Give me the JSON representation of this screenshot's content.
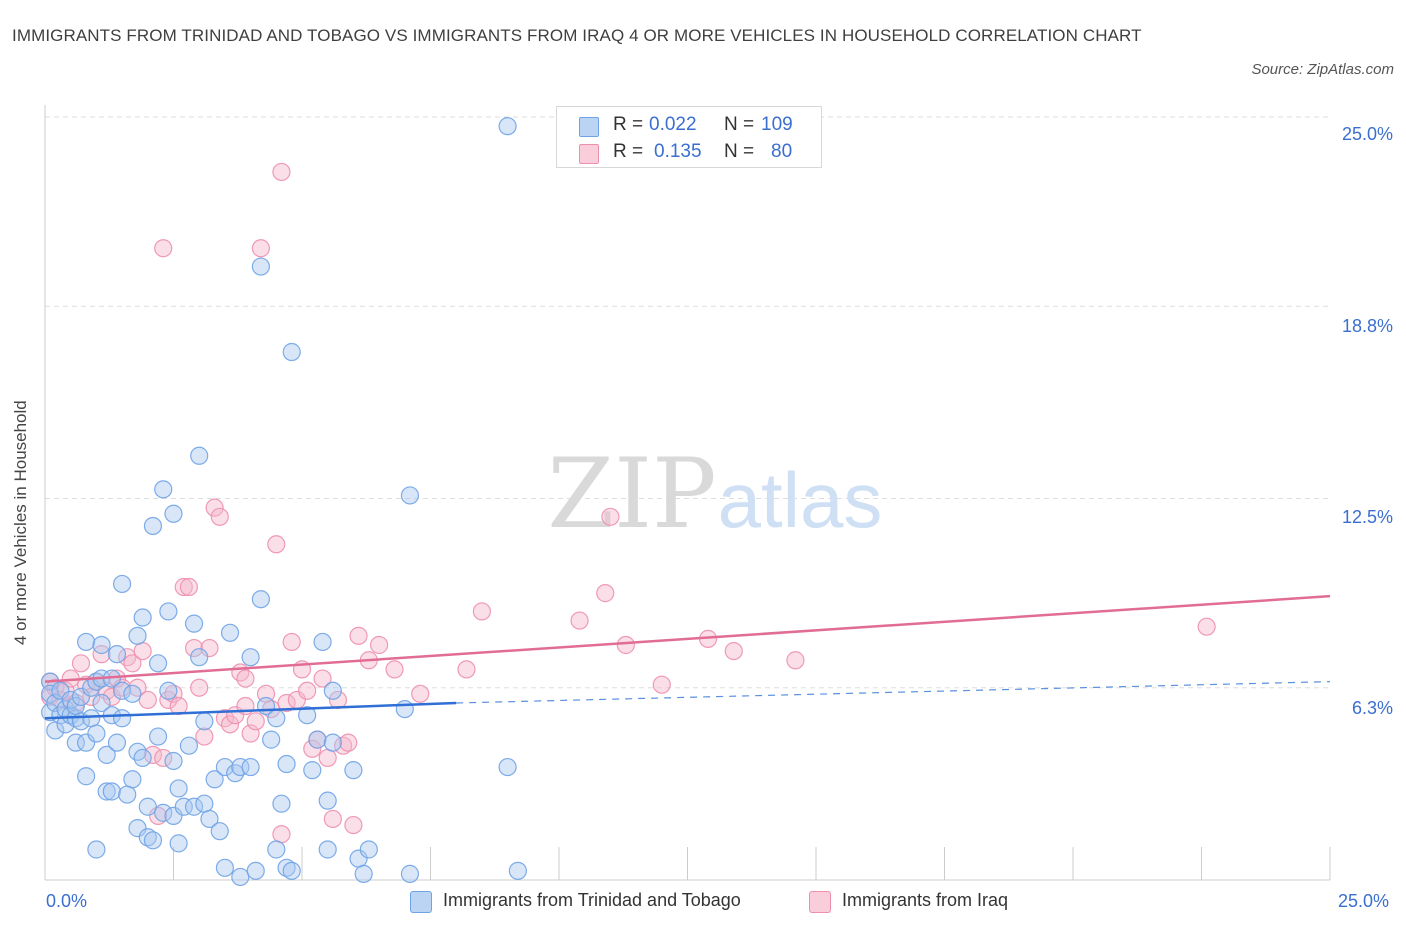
{
  "header": {
    "title": "IMMIGRANTS FROM TRINIDAD AND TOBAGO VS IMMIGRANTS FROM IRAQ 4 OR MORE VEHICLES IN HOUSEHOLD CORRELATION CHART",
    "source": "Source: ZipAtlas.com"
  },
  "watermark": {
    "zip": "ZIP",
    "atlas": "atlas"
  },
  "stats": {
    "rows": [
      {
        "r_label": "R =",
        "r_value": "0.022",
        "n_label": "N =",
        "n_value": "109",
        "color": "#a8c8f0"
      },
      {
        "r_label": "R =",
        "r_value": "0.135",
        "n_label": "N =",
        "n_value": "80",
        "color": "#f5b8cb"
      }
    ]
  },
  "legend": {
    "items": [
      {
        "label": "Immigrants from Trinidad and Tobago",
        "color": "#a8c8f0"
      },
      {
        "label": "Immigrants from Iraq",
        "color": "#f5b8cb"
      }
    ]
  },
  "chart_data": {
    "type": "scatter",
    "title": "IMMIGRANTS FROM TRINIDAD AND TOBAGO VS IMMIGRANTS FROM IRAQ 4 OR MORE VEHICLES IN HOUSEHOLD CORRELATION CHART",
    "xlabel": "",
    "ylabel": "4 or more Vehicles in Household",
    "xlim": [
      0,
      25
    ],
    "ylim": [
      0,
      25
    ],
    "x_tick_labels": [
      "0.0%",
      "25.0%"
    ],
    "y_tick_labels": [
      "6.3%",
      "12.5%",
      "18.8%",
      "25.0%"
    ],
    "y_ticks": [
      6.3,
      12.5,
      18.8,
      25.0
    ],
    "grid": true,
    "legend_position": "bottom",
    "series": [
      {
        "name": "Immigrants from Trinidad and Tobago",
        "color": "#6fa3e6",
        "fill": "#a8c8f0",
        "trend": {
          "x_start": 0,
          "x_end": 8,
          "y_start": 5.3,
          "y_end": 5.8,
          "dashed_to_x": 25,
          "dashed_to_y": 6.5
        },
        "points": [
          [
            0.1,
            6.5
          ],
          [
            0.1,
            6.1
          ],
          [
            0.1,
            5.5
          ],
          [
            0.2,
            4.9
          ],
          [
            0.2,
            5.8
          ],
          [
            0.3,
            5.4
          ],
          [
            0.3,
            6.2
          ],
          [
            0.4,
            5.1
          ],
          [
            0.4,
            5.6
          ],
          [
            0.5,
            5.4
          ],
          [
            0.5,
            5.9
          ],
          [
            0.6,
            5.3
          ],
          [
            0.6,
            5.7
          ],
          [
            0.6,
            4.5
          ],
          [
            0.7,
            6.0
          ],
          [
            0.7,
            5.2
          ],
          [
            0.8,
            4.5
          ],
          [
            0.8,
            3.4
          ],
          [
            0.8,
            7.8
          ],
          [
            0.9,
            6.3
          ],
          [
            0.9,
            5.3
          ],
          [
            1.0,
            4.8
          ],
          [
            1.0,
            6.5
          ],
          [
            1.0,
            1.0
          ],
          [
            1.1,
            7.7
          ],
          [
            1.1,
            6.6
          ],
          [
            1.1,
            5.8
          ],
          [
            1.2,
            4.1
          ],
          [
            1.2,
            2.9
          ],
          [
            1.3,
            2.9
          ],
          [
            1.3,
            6.6
          ],
          [
            1.3,
            5.4
          ],
          [
            1.4,
            7.4
          ],
          [
            1.4,
            4.5
          ],
          [
            1.5,
            9.7
          ],
          [
            1.5,
            6.2
          ],
          [
            1.5,
            5.3
          ],
          [
            1.6,
            2.8
          ],
          [
            1.7,
            3.3
          ],
          [
            1.7,
            6.1
          ],
          [
            1.8,
            8.0
          ],
          [
            1.8,
            4.2
          ],
          [
            1.8,
            1.7
          ],
          [
            1.9,
            8.6
          ],
          [
            1.9,
            4.0
          ],
          [
            2.0,
            2.4
          ],
          [
            2.0,
            1.4
          ],
          [
            2.1,
            11.6
          ],
          [
            2.1,
            1.3
          ],
          [
            2.2,
            7.1
          ],
          [
            2.2,
            4.7
          ],
          [
            2.3,
            12.8
          ],
          [
            2.3,
            2.2
          ],
          [
            2.4,
            8.8
          ],
          [
            2.4,
            6.2
          ],
          [
            2.5,
            12.0
          ],
          [
            2.5,
            3.9
          ],
          [
            2.5,
            2.1
          ],
          [
            2.6,
            3.0
          ],
          [
            2.6,
            1.2
          ],
          [
            2.7,
            2.4
          ],
          [
            2.8,
            4.4
          ],
          [
            2.9,
            8.4
          ],
          [
            2.9,
            2.4
          ],
          [
            3.0,
            13.9
          ],
          [
            3.0,
            7.3
          ],
          [
            3.1,
            5.2
          ],
          [
            3.1,
            2.5
          ],
          [
            3.2,
            2.0
          ],
          [
            3.3,
            3.3
          ],
          [
            3.4,
            1.6
          ],
          [
            3.5,
            3.7
          ],
          [
            3.5,
            0.4
          ],
          [
            3.6,
            8.1
          ],
          [
            3.7,
            3.5
          ],
          [
            3.8,
            3.7
          ],
          [
            3.8,
            0.1
          ],
          [
            4.0,
            7.3
          ],
          [
            4.0,
            3.7
          ],
          [
            4.1,
            0.3
          ],
          [
            4.2,
            20.1
          ],
          [
            4.2,
            9.2
          ],
          [
            4.3,
            5.7
          ],
          [
            4.4,
            4.6
          ],
          [
            4.5,
            5.3
          ],
          [
            4.5,
            1.0
          ],
          [
            4.6,
            2.5
          ],
          [
            4.7,
            3.8
          ],
          [
            4.7,
            0.4
          ],
          [
            4.8,
            17.3
          ],
          [
            4.8,
            0.3
          ],
          [
            5.1,
            5.4
          ],
          [
            5.2,
            3.6
          ],
          [
            5.3,
            4.6
          ],
          [
            5.4,
            7.8
          ],
          [
            5.5,
            1.0
          ],
          [
            5.5,
            2.6
          ],
          [
            5.6,
            6.2
          ],
          [
            6.0,
            3.6
          ],
          [
            6.1,
            0.7
          ],
          [
            6.2,
            0.2
          ],
          [
            6.3,
            1.0
          ],
          [
            7.0,
            5.6
          ],
          [
            7.1,
            0.2
          ],
          [
            7.1,
            12.6
          ],
          [
            9.0,
            24.7
          ],
          [
            9.0,
            3.7
          ],
          [
            9.2,
            0.3
          ],
          [
            5.6,
            4.5
          ]
        ]
      },
      {
        "name": "Immigrants from Iraq",
        "color": "#ee8fae",
        "fill": "#f5b8cb",
        "trend": {
          "x_start": 0,
          "x_end": 25,
          "y_start": 6.5,
          "y_end": 9.3
        },
        "points": [
          [
            0.1,
            6.5
          ],
          [
            0.1,
            6.0
          ],
          [
            0.2,
            6.3
          ],
          [
            0.3,
            5.9
          ],
          [
            0.4,
            6.2
          ],
          [
            0.5,
            6.6
          ],
          [
            0.6,
            5.8
          ],
          [
            0.7,
            7.1
          ],
          [
            0.8,
            6.4
          ],
          [
            0.9,
            6.0
          ],
          [
            1.0,
            6.5
          ],
          [
            1.1,
            7.4
          ],
          [
            1.2,
            6.2
          ],
          [
            1.3,
            6.0
          ],
          [
            1.4,
            6.6
          ],
          [
            1.5,
            6.3
          ],
          [
            1.6,
            7.3
          ],
          [
            1.7,
            7.1
          ],
          [
            1.8,
            6.3
          ],
          [
            1.9,
            7.5
          ],
          [
            2.0,
            5.9
          ],
          [
            2.1,
            4.1
          ],
          [
            2.2,
            2.1
          ],
          [
            2.3,
            4.0
          ],
          [
            2.4,
            5.9
          ],
          [
            2.5,
            6.1
          ],
          [
            2.6,
            5.7
          ],
          [
            2.7,
            9.6
          ],
          [
            2.8,
            9.6
          ],
          [
            2.9,
            7.6
          ],
          [
            3.0,
            6.3
          ],
          [
            3.1,
            4.7
          ],
          [
            3.2,
            7.6
          ],
          [
            3.3,
            12.2
          ],
          [
            3.4,
            11.9
          ],
          [
            3.5,
            5.3
          ],
          [
            3.6,
            5.1
          ],
          [
            3.7,
            5.4
          ],
          [
            3.8,
            6.8
          ],
          [
            3.9,
            5.7
          ],
          [
            4.0,
            4.8
          ],
          [
            4.1,
            5.2
          ],
          [
            4.2,
            20.7
          ],
          [
            4.3,
            6.1
          ],
          [
            4.4,
            5.6
          ],
          [
            4.5,
            11.0
          ],
          [
            4.6,
            1.5
          ],
          [
            4.7,
            5.8
          ],
          [
            4.8,
            7.8
          ],
          [
            4.9,
            5.9
          ],
          [
            5.0,
            6.9
          ],
          [
            5.1,
            6.2
          ],
          [
            5.2,
            4.3
          ],
          [
            5.3,
            4.6
          ],
          [
            5.4,
            6.6
          ],
          [
            5.5,
            4.0
          ],
          [
            5.6,
            2.0
          ],
          [
            5.7,
            5.9
          ],
          [
            5.8,
            4.4
          ],
          [
            6.0,
            1.8
          ],
          [
            6.1,
            8.0
          ],
          [
            6.3,
            7.2
          ],
          [
            6.5,
            7.7
          ],
          [
            6.8,
            6.9
          ],
          [
            7.3,
            6.1
          ],
          [
            8.2,
            6.9
          ],
          [
            8.5,
            8.8
          ],
          [
            10.4,
            8.5
          ],
          [
            10.9,
            9.4
          ],
          [
            11.0,
            11.9
          ],
          [
            11.3,
            7.7
          ],
          [
            12.0,
            6.4
          ],
          [
            12.9,
            7.9
          ],
          [
            13.4,
            7.5
          ],
          [
            14.6,
            7.2
          ],
          [
            22.6,
            8.3
          ],
          [
            4.6,
            23.2
          ],
          [
            2.3,
            20.7
          ],
          [
            3.9,
            6.6
          ],
          [
            5.9,
            4.5
          ]
        ]
      }
    ]
  }
}
